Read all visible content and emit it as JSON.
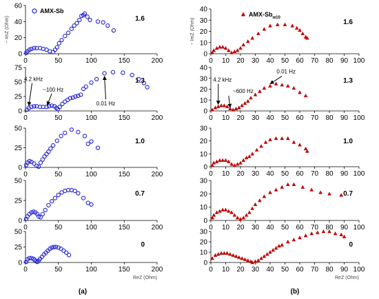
{
  "chart_data": [
    {
      "type": "scatter",
      "panel_label": "(a)",
      "legend": "AMX-Sb",
      "legend_position": "top-left",
      "marker": "open-circle",
      "color": "#1f1fd6",
      "x_ticks": [
        "0",
        "50",
        "100",
        "150",
        "200"
      ],
      "xlabel": "ReZ (Ohm)",
      "ylabel": "− ImZ (Ohm)",
      "xlim": [
        0,
        200
      ],
      "subplots": [
        {
          "label": "1.6",
          "ylim": [
            0,
            60
          ],
          "y_ticks": [
            "0",
            "20",
            "40",
            "60"
          ],
          "x": [
            1,
            3,
            6,
            9,
            13,
            17,
            22,
            27,
            32,
            37,
            42,
            45,
            48,
            51,
            55,
            60,
            65,
            70,
            74,
            78,
            82,
            85,
            88,
            90,
            94,
            98,
            110,
            118,
            125,
            134
          ],
          "y": [
            1,
            3,
            5,
            6,
            7,
            7,
            7,
            6,
            5,
            3,
            2,
            5,
            8,
            13,
            17,
            22,
            26,
            31,
            35,
            38,
            42,
            47,
            48,
            50,
            46,
            42,
            40,
            39,
            35,
            29
          ],
          "annotations": []
        },
        {
          "label": "1.3",
          "ylim": [
            0,
            75
          ],
          "y_ticks": [
            "0",
            "25",
            "50",
            "75"
          ],
          "x": [
            2,
            5,
            9,
            13,
            17,
            22,
            27,
            32,
            36,
            40,
            44,
            47,
            49,
            52,
            56,
            60,
            64,
            68,
            72,
            76,
            80,
            84,
            88,
            92,
            100,
            108,
            120,
            133,
            148,
            162,
            172,
            180,
            185
          ],
          "y": [
            2,
            5,
            7,
            8,
            8,
            7,
            7,
            7,
            8,
            9,
            8,
            5,
            3,
            7,
            12,
            16,
            19,
            22,
            23,
            25,
            26,
            28,
            38,
            42,
            49,
            55,
            65,
            67,
            66,
            62,
            55,
            48,
            41
          ],
          "annotations": [
            {
              "text": "4.2 kHz",
              "tail": [
                10,
                48
              ],
              "head": [
                5,
                9
              ]
            },
            {
              "text": "~100 Hz",
              "tail": [
                40,
                30
              ],
              "head": [
                33,
                10
              ]
            },
            {
              "text": "0.01 Hz",
              "tail": [
                122,
                20
              ],
              "head": [
                120,
                60
              ]
            }
          ]
        },
        {
          "label": "1.0",
          "ylim": [
            0,
            50
          ],
          "y_ticks": [
            "0",
            "25",
            "50"
          ],
          "x": [
            1,
            3,
            6,
            9,
            13,
            17,
            20,
            23,
            26,
            29,
            32,
            35,
            38,
            42,
            48,
            54,
            60,
            70,
            80,
            90,
            95,
            100,
            110
          ],
          "y": [
            3,
            6,
            8,
            7,
            5,
            2,
            1,
            6,
            10,
            14,
            17,
            20,
            24,
            28,
            34,
            40,
            44,
            48,
            45,
            40,
            30,
            33,
            25
          ],
          "annotations": []
        },
        {
          "label": "0.7",
          "ylim": [
            0,
            50
          ],
          "y_ticks": [
            "0",
            "25",
            "50"
          ],
          "x": [
            1,
            3,
            6,
            9,
            12,
            15,
            18,
            20,
            23,
            26,
            30,
            35,
            40,
            45,
            50,
            55,
            60,
            65,
            70,
            75,
            80,
            88,
            95,
            100
          ],
          "y": [
            2,
            5,
            8,
            10,
            11,
            10,
            8,
            5,
            4,
            8,
            13,
            19,
            24,
            28,
            32,
            35,
            37,
            38,
            38,
            37,
            34,
            28,
            22,
            20
          ],
          "annotations": []
        },
        {
          "label": "0",
          "ylim": [
            0,
            50
          ],
          "y_ticks": [
            "0",
            "25",
            "50"
          ],
          "x": [
            1,
            3,
            6,
            9,
            12,
            14,
            16,
            18,
            20,
            22,
            25,
            28,
            31,
            34,
            37,
            40,
            43,
            46,
            50,
            54,
            58,
            62,
            66
          ],
          "y": [
            1,
            5,
            7,
            7,
            6,
            4,
            2,
            1,
            3,
            6,
            9,
            13,
            16,
            19,
            22,
            24,
            25,
            25,
            24,
            22,
            19,
            16,
            12
          ],
          "annotations": []
        }
      ]
    },
    {
      "type": "scatter",
      "panel_label": "(b)",
      "legend": "AMX-Sb",
      "legend_subscript": "w10",
      "legend_position": "top-left",
      "marker": "filled-triangle",
      "color": "#c00000",
      "x_ticks": [
        "0",
        "10",
        "20",
        "30",
        "40",
        "50",
        "60",
        "70",
        "80",
        "90",
        "100"
      ],
      "xlabel": "ReZ (Ohm)",
      "ylabel": "− ImZ (Ohm)",
      "xlim": [
        0,
        100
      ],
      "subplots": [
        {
          "label": "1.6",
          "ylim": [
            0,
            40
          ],
          "y_ticks": [
            "0",
            "10",
            "20",
            "30",
            "40"
          ],
          "x": [
            1,
            2,
            4,
            6,
            8,
            10,
            12,
            14,
            16,
            18,
            20,
            22,
            25,
            28,
            32,
            36,
            40,
            45,
            50,
            55,
            58,
            60,
            62,
            64,
            65
          ],
          "y": [
            1,
            3,
            5,
            6,
            6,
            5,
            3,
            1,
            2,
            3,
            5,
            8,
            11,
            14,
            18,
            22,
            25,
            26,
            26,
            25,
            23,
            21,
            18,
            15,
            14
          ],
          "annotations": []
        },
        {
          "label": "1.3",
          "ylim": [
            0,
            40
          ],
          "y_ticks": [
            "0",
            "10",
            "20",
            "30",
            "40"
          ],
          "x": [
            1,
            3,
            5,
            7,
            9,
            11,
            13,
            15,
            17,
            19,
            21,
            23,
            25,
            27,
            30,
            33,
            36,
            40,
            44,
            48,
            52,
            56,
            60,
            64
          ],
          "y": [
            1,
            3,
            4,
            5,
            5,
            4,
            2,
            1,
            2,
            3,
            5,
            7,
            9,
            12,
            15,
            18,
            21,
            23,
            25,
            24,
            23,
            21,
            17,
            14
          ],
          "annotations": [
            {
              "text": "4.2 kHz",
              "tail": [
                5,
                25
              ],
              "head": [
                5,
                6
              ]
            },
            {
              "text": "~600 Hz",
              "tail": [
                12,
                14
              ],
              "head": [
                13,
                3
              ]
            },
            {
              "text": "0.01 Hz",
              "tail": [
                48,
                32
              ],
              "head": [
                40,
                25
              ]
            }
          ]
        },
        {
          "label": "1.0",
          "ylim": [
            0,
            30
          ],
          "y_ticks": [
            "0",
            "10",
            "20",
            "30"
          ],
          "x": [
            1,
            2,
            4,
            6,
            8,
            10,
            12,
            14,
            16,
            18,
            20,
            22,
            24,
            26,
            28,
            31,
            34,
            37,
            40,
            44,
            48,
            52,
            56,
            60,
            64,
            65
          ],
          "y": [
            1,
            3,
            4,
            5,
            5,
            5,
            4,
            2,
            1,
            2,
            3,
            5,
            7,
            8,
            10,
            13,
            16,
            19,
            21,
            22,
            22,
            22,
            19,
            17,
            14,
            12
          ],
          "annotations": []
        },
        {
          "label": "0.7",
          "ylim": [
            0,
            30
          ],
          "y_ticks": [
            "0",
            "10",
            "20",
            "30"
          ],
          "x": [
            1,
            2,
            4,
            6,
            8,
            10,
            12,
            14,
            16,
            18,
            20,
            22,
            24,
            26,
            28,
            30,
            33,
            36,
            40,
            44,
            48,
            52,
            56,
            62,
            68,
            74,
            80,
            88
          ],
          "y": [
            2,
            4,
            6,
            7,
            8,
            8,
            7,
            6,
            4,
            2,
            1,
            2,
            4,
            6,
            9,
            12,
            15,
            18,
            21,
            23,
            25,
            27,
            27,
            25,
            23,
            21,
            20,
            19
          ],
          "annotations": []
        },
        {
          "label": "0",
          "ylim": [
            0,
            30
          ],
          "y_ticks": [
            "0",
            "10",
            "20",
            "30"
          ],
          "x": [
            1,
            3,
            5,
            7,
            9,
            11,
            13,
            15,
            17,
            19,
            21,
            23,
            25,
            27,
            28,
            30,
            32,
            34,
            36,
            38,
            40,
            42,
            44,
            46,
            48,
            52,
            56,
            60,
            64,
            68,
            72,
            76,
            80,
            84,
            88,
            90
          ],
          "y": [
            4,
            7,
            8,
            9,
            9,
            9,
            8,
            7,
            6,
            5,
            4,
            3,
            2,
            1,
            0,
            1,
            2,
            4,
            6,
            8,
            10,
            12,
            14,
            16,
            17,
            20,
            22,
            24,
            26,
            28,
            29,
            30,
            30,
            28,
            27,
            25
          ],
          "annotations": []
        }
      ]
    }
  ]
}
